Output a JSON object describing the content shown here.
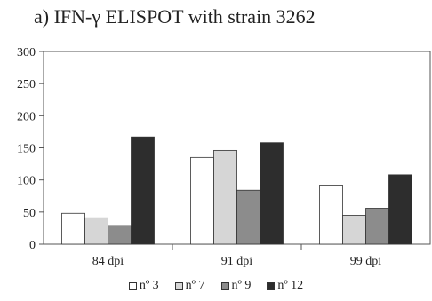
{
  "chart_data": {
    "type": "bar",
    "title": "a) IFN-γ ELISPOT with strain 3262",
    "categories": [
      "84 dpi",
      "91 dpi",
      "99 dpi"
    ],
    "series": [
      {
        "name": "nº 3",
        "values": [
          48,
          135,
          92
        ],
        "color": "#ffffff"
      },
      {
        "name": "nº 7",
        "values": [
          41,
          146,
          45
        ],
        "color": "#d6d6d6"
      },
      {
        "name": "nº  9",
        "values": [
          29,
          84,
          56
        ],
        "color": "#8c8c8c"
      },
      {
        "name": "nº 12",
        "values": [
          167,
          158,
          108
        ],
        "color": "#2d2d2d"
      }
    ],
    "xlabel": "",
    "ylabel": "",
    "ylim": [
      0,
      300
    ],
    "yticks": [
      0,
      50,
      100,
      150,
      200,
      250,
      300
    ],
    "grid": false,
    "legend_position": "bottom"
  }
}
